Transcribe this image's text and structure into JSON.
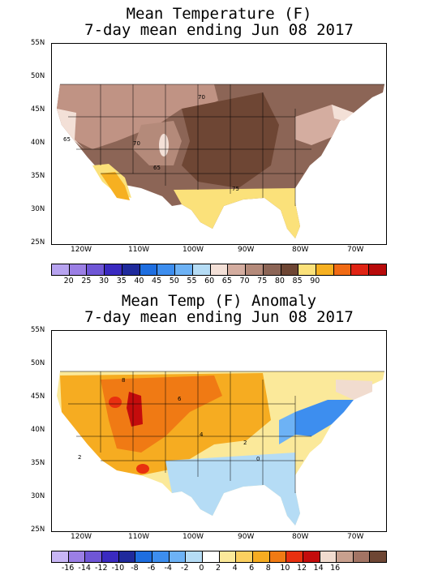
{
  "map1": {
    "title_line1": "Mean Temperature (F)",
    "title_line2": "7-day mean ending Jun 08 2017",
    "lat_labels": [
      "55N",
      "50N",
      "45N",
      "40N",
      "35N",
      "30N",
      "25N"
    ],
    "lon_labels": [
      "120W",
      "110W",
      "100W",
      "90W",
      "80W",
      "70W"
    ],
    "contour_labels": [
      "70",
      "65",
      "70",
      "65",
      "75"
    ],
    "legend_colors": [
      "#b7a3f0",
      "#9b7fe5",
      "#6f56d6",
      "#3a2ac0",
      "#1f2a9c",
      "#1e6ee0",
      "#3d8eef",
      "#6db2f5",
      "#b5dcf5",
      "#f3e0d7",
      "#d4ada0",
      "#b48a7a",
      "#8c6556",
      "#6e4634",
      "#fbe17a",
      "#f6b021",
      "#f06a14",
      "#e02414",
      "#b80a0a"
    ],
    "legend_labels": [
      "20",
      "25",
      "30",
      "35",
      "40",
      "45",
      "50",
      "55",
      "60",
      "65",
      "70",
      "75",
      "80",
      "85",
      "90"
    ]
  },
  "map2": {
    "title_line1": "Mean Temp (F) Anomaly",
    "title_line2": "7-day mean ending Jun 08 2017",
    "lat_labels": [
      "55N",
      "50N",
      "45N",
      "40N",
      "35N",
      "30N",
      "25N"
    ],
    "lon_labels": [
      "120W",
      "110W",
      "100W",
      "90W",
      "80W",
      "70W"
    ],
    "contour_labels": [
      "8",
      "6",
      "4",
      "2",
      "0",
      "2"
    ],
    "legend_colors": [
      "#c8b6f5",
      "#9b7fe5",
      "#6f56d6",
      "#3a2ac0",
      "#1f2a9c",
      "#1e6ee0",
      "#3d8eef",
      "#6db2f5",
      "#b5dcf5",
      "#ffffff",
      "#fbe99a",
      "#fbd060",
      "#f6ac21",
      "#f07a14",
      "#e8300f",
      "#c40c0c",
      "#f1dccf",
      "#c8a08e",
      "#a27464",
      "#6e4634"
    ],
    "legend_labels": [
      "-16",
      "-14",
      "-12",
      "-10",
      "-8",
      "-6",
      "-4",
      "-2",
      "0",
      "2",
      "4",
      "6",
      "8",
      "10",
      "12",
      "14",
      "16"
    ]
  }
}
